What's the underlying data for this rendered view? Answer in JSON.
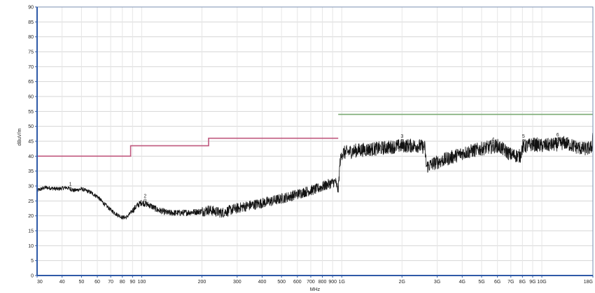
{
  "chart_data": {
    "type": "line",
    "title": "",
    "xlabel": "MHz",
    "ylabel": "dBuV/m",
    "x_scale": "log",
    "xlim": [
      30,
      18000
    ],
    "ylim": [
      0,
      90
    ],
    "grid": true,
    "y_ticks": [
      0,
      5,
      10,
      15,
      20,
      25,
      30,
      35,
      40,
      45,
      50,
      55,
      60,
      65,
      70,
      75,
      80,
      85,
      90
    ],
    "x_ticks": [
      {
        "value": 30,
        "label": "30"
      },
      {
        "value": 40,
        "label": "40"
      },
      {
        "value": 50,
        "label": "50"
      },
      {
        "value": 60,
        "label": "60"
      },
      {
        "value": 70,
        "label": "70"
      },
      {
        "value": 80,
        "label": "80"
      },
      {
        "value": 90,
        "label": "90"
      },
      {
        "value": 100,
        "label": "100"
      },
      {
        "value": 200,
        "label": "200"
      },
      {
        "value": 300,
        "label": "300"
      },
      {
        "value": 400,
        "label": "400"
      },
      {
        "value": 500,
        "label": "500"
      },
      {
        "value": 600,
        "label": "600"
      },
      {
        "value": 700,
        "label": "700"
      },
      {
        "value": 800,
        "label": "800"
      },
      {
        "value": 900,
        "label": "900"
      },
      {
        "value": 1000,
        "label": "1G"
      },
      {
        "value": 2000,
        "label": "2G"
      },
      {
        "value": 3000,
        "label": "3G"
      },
      {
        "value": 4000,
        "label": "4G"
      },
      {
        "value": 5000,
        "label": "5G"
      },
      {
        "value": 6000,
        "label": "6G"
      },
      {
        "value": 7000,
        "label": "7G"
      },
      {
        "value": 8000,
        "label": "8G"
      },
      {
        "value": 9000,
        "label": "9G"
      },
      {
        "value": 10000,
        "label": "10G"
      },
      {
        "value": 18000,
        "label": "18G"
      }
    ],
    "limit_lines": [
      {
        "color": "#c0587e",
        "segments": [
          [
            30,
            88,
            40
          ],
          [
            88,
            216,
            43.5
          ],
          [
            216,
            960,
            46
          ]
        ]
      },
      {
        "color": "#7aaa72",
        "segments": [
          [
            960,
            18000,
            54
          ]
        ]
      }
    ],
    "trace_color": "#111111",
    "trace_anchors": [
      [
        30,
        28.5
      ],
      [
        33,
        29.5
      ],
      [
        38,
        29
      ],
      [
        42,
        29.5
      ],
      [
        46,
        28.5
      ],
      [
        50,
        29
      ],
      [
        55,
        28
      ],
      [
        60,
        26.5
      ],
      [
        65,
        24
      ],
      [
        70,
        22
      ],
      [
        75,
        20.5
      ],
      [
        80,
        19.5
      ],
      [
        84,
        19.5
      ],
      [
        88,
        21
      ],
      [
        95,
        23.5
      ],
      [
        100,
        24.5
      ],
      [
        110,
        23.5
      ],
      [
        120,
        22
      ],
      [
        135,
        21
      ],
      [
        160,
        21
      ],
      [
        200,
        21.5
      ],
      [
        216,
        22
      ],
      [
        250,
        21
      ],
      [
        280,
        22
      ],
      [
        320,
        23
      ],
      [
        380,
        24
      ],
      [
        450,
        25
      ],
      [
        550,
        26.5
      ],
      [
        650,
        28
      ],
      [
        750,
        29
      ],
      [
        850,
        30.5
      ],
      [
        930,
        31.5
      ],
      [
        960,
        28.5
      ],
      [
        980,
        38
      ],
      [
        1000,
        41
      ],
      [
        1200,
        42
      ],
      [
        1500,
        42.5
      ],
      [
        2000,
        43.5
      ],
      [
        2400,
        43.5
      ],
      [
        2600,
        43
      ],
      [
        2650,
        36.5
      ],
      [
        3000,
        38
      ],
      [
        3500,
        39.5
      ],
      [
        4000,
        41
      ],
      [
        5000,
        42.5
      ],
      [
        6000,
        43.5
      ],
      [
        6500,
        42
      ],
      [
        7000,
        40.5
      ],
      [
        7800,
        40
      ],
      [
        8000,
        43
      ],
      [
        9000,
        44
      ],
      [
        10000,
        43.5
      ],
      [
        12000,
        44
      ],
      [
        13000,
        44.5
      ],
      [
        15000,
        43
      ],
      [
        16000,
        42.5
      ],
      [
        17000,
        42.5
      ],
      [
        17800,
        43
      ],
      [
        18000,
        48
      ]
    ],
    "markers": [
      {
        "label": "1",
        "x": 44,
        "y": 29
      },
      {
        "label": "2",
        "x": 104,
        "y": 25
      },
      {
        "label": "3",
        "x": 2000,
        "y": 45
      },
      {
        "label": "4",
        "x": 5700,
        "y": 44
      },
      {
        "label": "5",
        "x": 8100,
        "y": 45
      },
      {
        "label": "6",
        "x": 12000,
        "y": 45.5
      }
    ]
  }
}
